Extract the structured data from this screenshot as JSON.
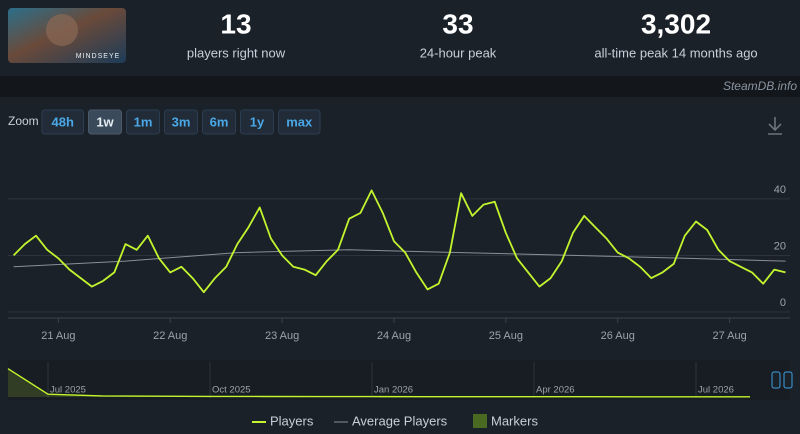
{
  "header": {
    "game_logo_text": "MINDSEYE",
    "stats": [
      {
        "value": "13",
        "label": "players right now"
      },
      {
        "value": "33",
        "label": "24-hour peak"
      },
      {
        "value": "3,302",
        "label": "all-time peak 14 months ago"
      }
    ],
    "watermark": "SteamDB.info"
  },
  "zoom": {
    "label": "Zoom",
    "options": [
      "48h",
      "1w",
      "1m",
      "3m",
      "6m",
      "1y",
      "max"
    ],
    "active": "1w"
  },
  "chart_data": [
    {
      "type": "line",
      "xlim": [
        20.55,
        27.54
      ],
      "xticks": [
        {
          "value": 21,
          "label": "21 Aug"
        },
        {
          "value": 22,
          "label": "22 Aug"
        },
        {
          "value": 23,
          "label": "23 Aug"
        },
        {
          "value": 24,
          "label": "24 Aug"
        },
        {
          "value": 25,
          "label": "25 Aug"
        },
        {
          "value": 26,
          "label": "26 Aug"
        },
        {
          "value": 27,
          "label": "27 Aug"
        }
      ],
      "ylim": [
        0,
        58
      ],
      "yticks": [
        0,
        20,
        40
      ],
      "grid": true,
      "series": [
        {
          "name": "Players",
          "color": "#c3f52e",
          "x": [
            20.6,
            20.7,
            20.8,
            20.9,
            21.0,
            21.1,
            21.2,
            21.3,
            21.4,
            21.5,
            21.6,
            21.7,
            21.8,
            21.9,
            22.0,
            22.1,
            22.2,
            22.3,
            22.4,
            22.5,
            22.6,
            22.7,
            22.8,
            22.9,
            23.0,
            23.1,
            23.2,
            23.3,
            23.4,
            23.5,
            23.6,
            23.7,
            23.8,
            23.9,
            24.0,
            24.1,
            24.2,
            24.3,
            24.4,
            24.5,
            24.6,
            24.7,
            24.8,
            24.9,
            25.0,
            25.1,
            25.2,
            25.3,
            25.4,
            25.5,
            25.6,
            25.7,
            25.8,
            25.9,
            26.0,
            26.1,
            26.2,
            26.3,
            26.4,
            26.5,
            26.6,
            26.7,
            26.8,
            26.9,
            27.0,
            27.1,
            27.2,
            27.3,
            27.4,
            27.5
          ],
          "values": [
            20,
            24,
            27,
            22,
            19,
            15,
            12,
            9,
            11,
            14,
            24,
            22,
            27,
            19,
            14,
            16,
            12,
            7,
            12,
            16,
            24,
            30,
            37,
            26,
            20,
            16,
            15,
            13,
            18,
            22,
            33,
            35,
            43,
            35,
            25,
            21,
            14,
            8,
            10,
            21,
            42,
            34,
            38,
            39,
            28,
            19,
            14,
            9,
            12,
            18,
            28,
            34,
            30,
            26,
            21,
            19,
            16,
            12,
            14,
            17,
            27,
            32,
            29,
            22,
            18,
            16,
            14,
            10,
            15,
            14
          ]
        },
        {
          "name": "Average Players",
          "color": "#8a9098",
          "x": [
            20.6,
            21.6,
            22.6,
            23.6,
            24.6,
            25.6,
            26.6,
            27.5
          ],
          "values": [
            16,
            18,
            21,
            22,
            21,
            20,
            19,
            18
          ]
        }
      ],
      "markers": {
        "name": "Markers",
        "color": "#4a6a22"
      }
    },
    {
      "type": "area",
      "categories": [
        null,
        "Jul 2025",
        null,
        null,
        "Oct 2025",
        null,
        null,
        "Jan 2026",
        null,
        null,
        "Apr 2026",
        null,
        null,
        "Jul 2026",
        null
      ],
      "values": [
        3000,
        300,
        120,
        80,
        60,
        50,
        45,
        40,
        35,
        30,
        30,
        28,
        25,
        22,
        20
      ],
      "ylim": [
        0,
        3500
      ],
      "color": "#c3f52e"
    }
  ]
}
